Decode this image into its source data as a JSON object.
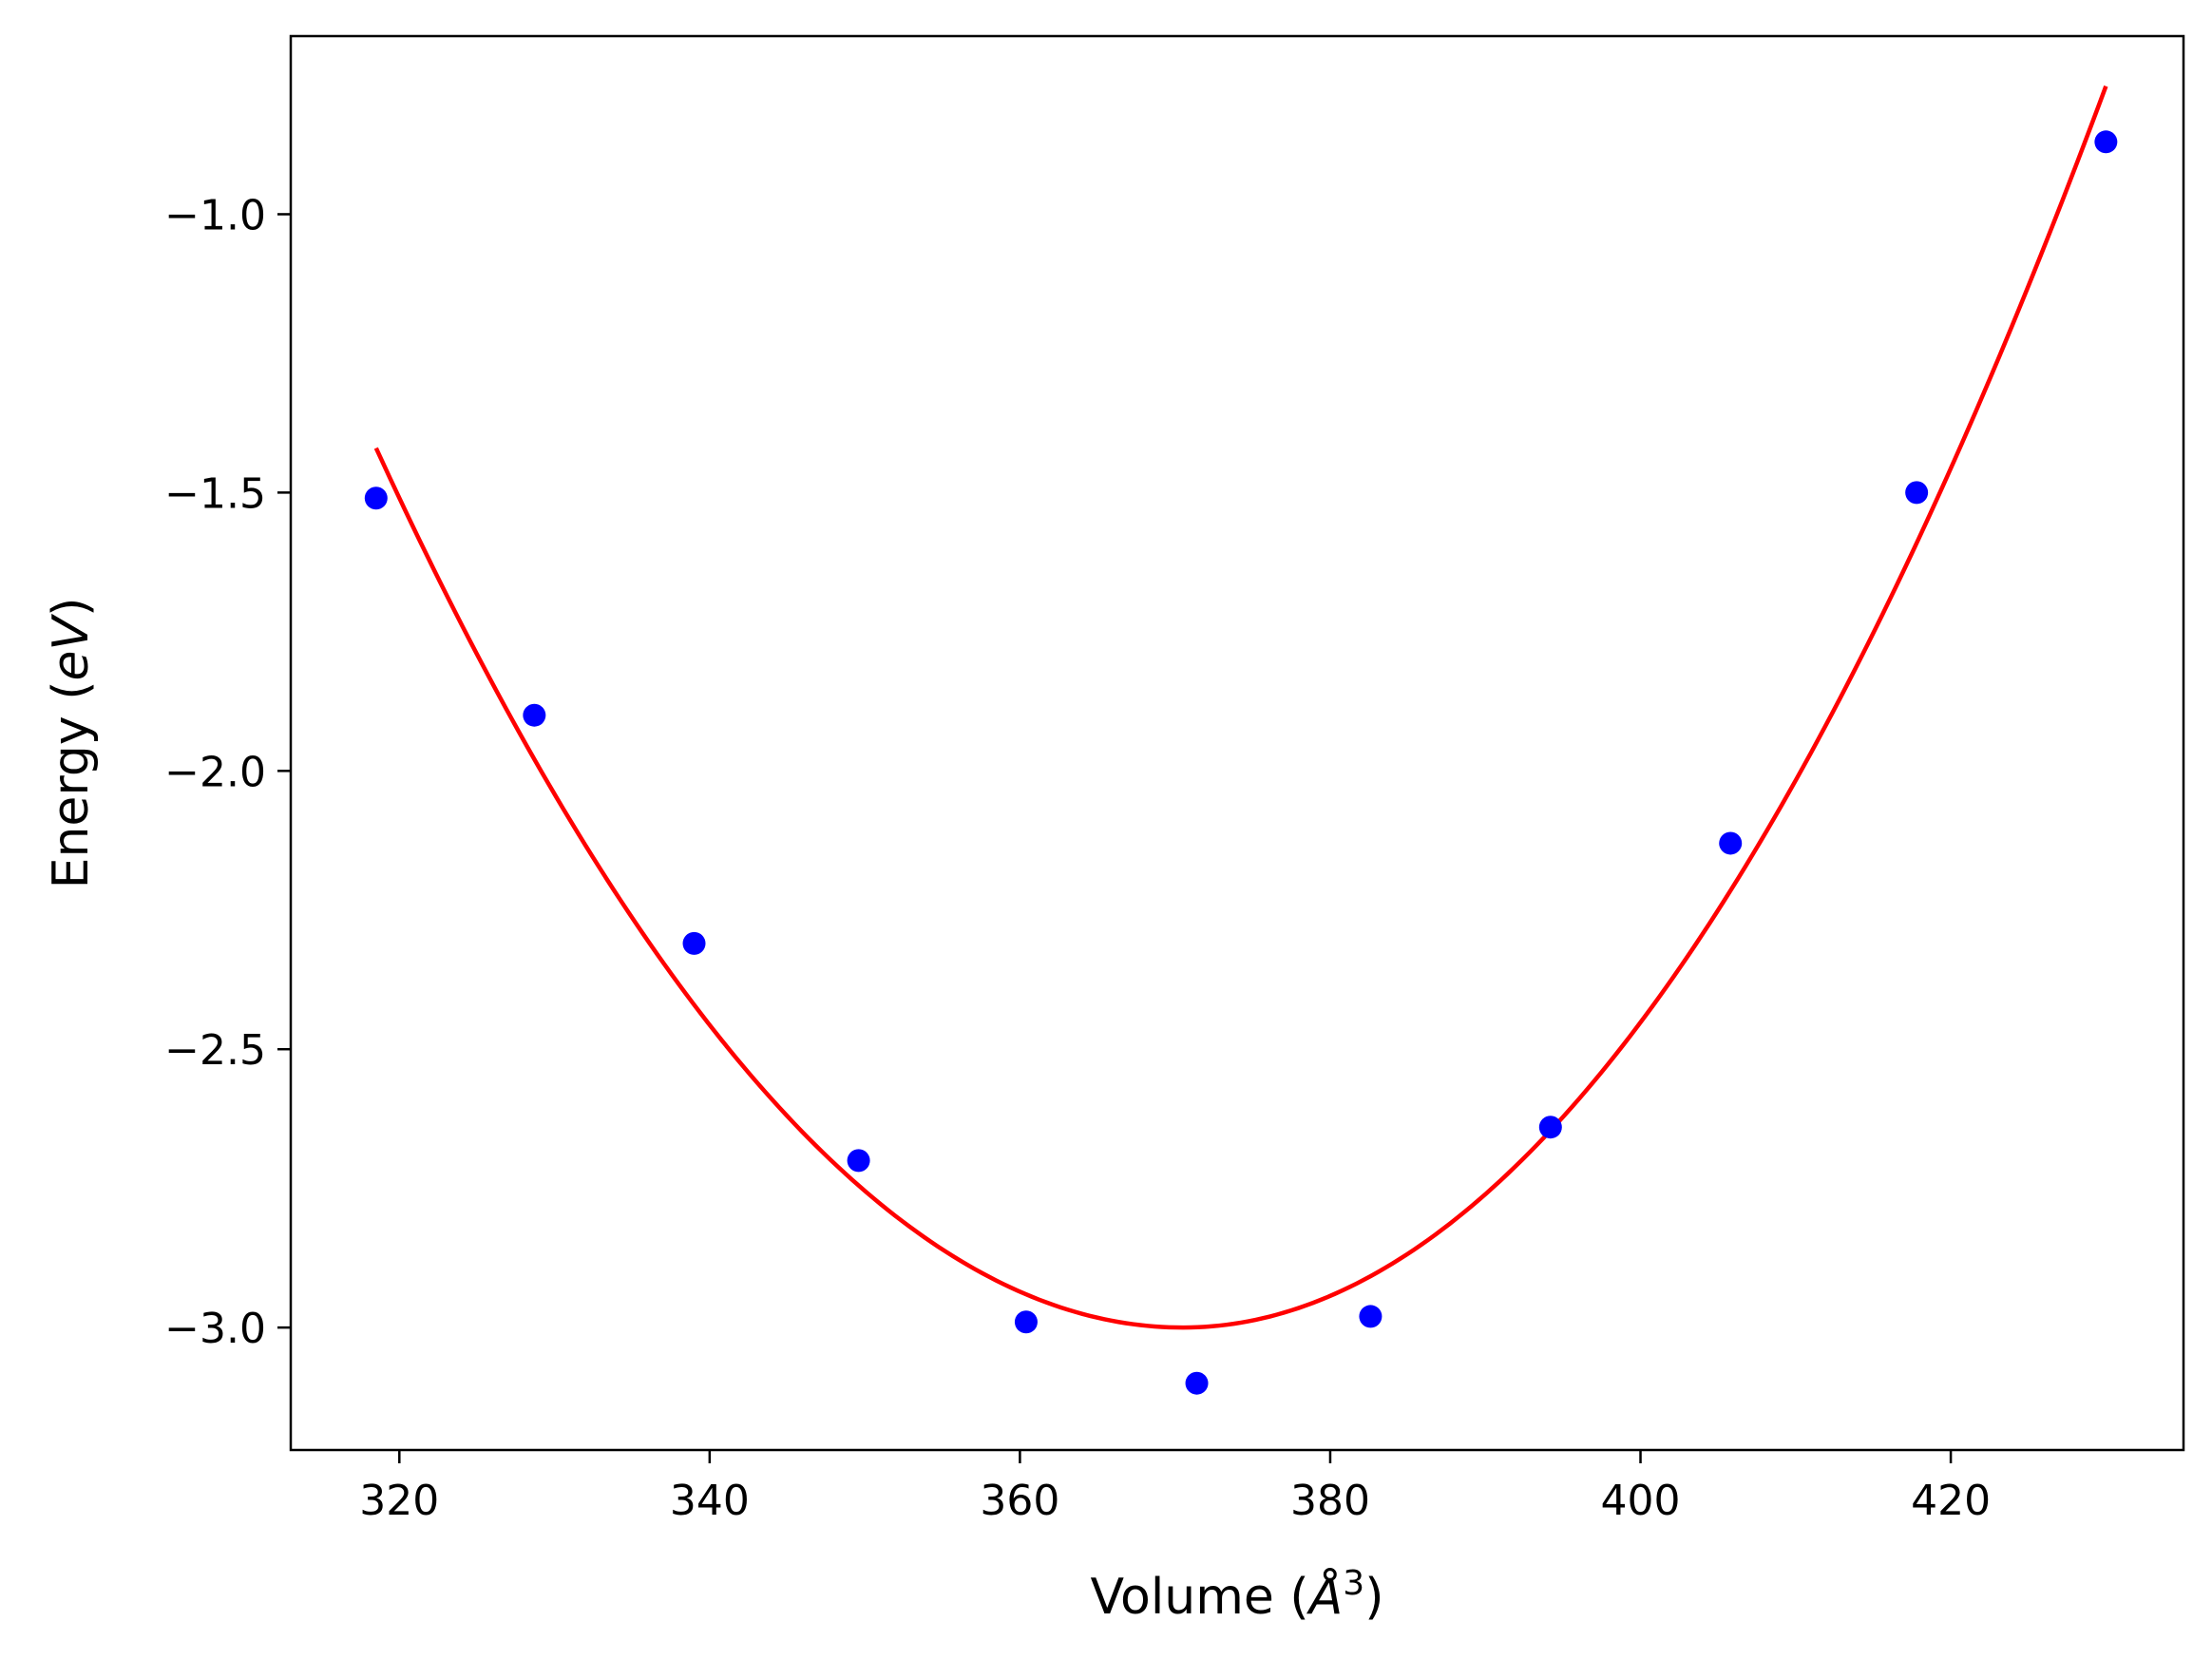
{
  "chart_data": {
    "type": "scatter",
    "title": "",
    "xlabel": "Volume (Å³)",
    "ylabel": "Energy (eV)",
    "xlabel_parts": {
      "pre": "Volume (",
      "sym": "Å",
      "sup": "3",
      "post": ")"
    },
    "ylabel_parts": {
      "pre": "Energy (",
      "sym": "eV",
      "post": ")"
    },
    "xlim": [
      313,
      435
    ],
    "ylim": [
      -3.22,
      -0.68
    ],
    "xticks": [
      320,
      340,
      360,
      380,
      400,
      420
    ],
    "xtick_labels": [
      "320",
      "340",
      "360",
      "380",
      "400",
      "420"
    ],
    "yticks": [
      -3.0,
      -2.5,
      -2.0,
      -1.5,
      -1.0
    ],
    "ytick_labels": [
      "−3.0",
      "−2.5",
      "−2.0",
      "−1.5",
      "−1.0"
    ],
    "grid": false,
    "series": [
      {
        "type": "scatter",
        "color": "#0000ff",
        "x": [
          318.5,
          328.7,
          339.0,
          349.6,
          360.4,
          371.4,
          382.6,
          394.2,
          405.8,
          417.8,
          430.0
        ],
        "y": [
          -1.51,
          -1.9,
          -2.31,
          -2.7,
          -2.99,
          -3.1,
          -2.98,
          -2.64,
          -2.13,
          -1.5,
          -0.87
        ]
      },
      {
        "type": "line",
        "color": "#ff0000",
        "fit": {
          "x_min_point": 370.5,
          "y_min": -3.0,
          "x_range": [
            318.5,
            430.0
          ],
          "y_endpoints": [
            -1.42,
            -0.77
          ]
        }
      }
    ]
  }
}
